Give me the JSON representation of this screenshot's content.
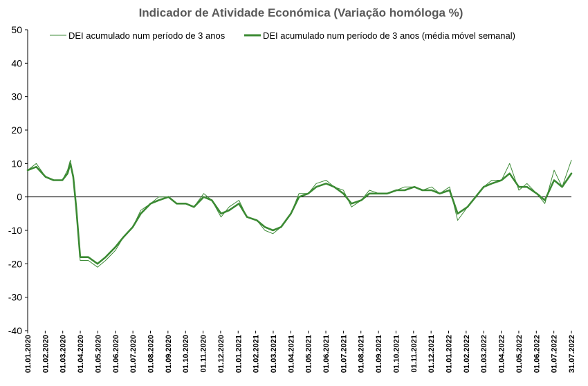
{
  "chart_data": {
    "type": "line",
    "title": "Indicador de Atividade Económica (Variação homóloga %)",
    "xlabel": "",
    "ylabel": "",
    "ylim": [
      -40,
      50
    ],
    "y_ticks": [
      -40,
      -30,
      -20,
      -10,
      0,
      10,
      20,
      30,
      40,
      50
    ],
    "x_tick_labels": [
      "01.01.2020",
      "01.02.2020",
      "01.03.2020",
      "01.04.2020",
      "01.05.2020",
      "01.06.2020",
      "01.07.2020",
      "01.08.2020",
      "01.09.2020",
      "01.10.2020",
      "01.11.2020",
      "01.12.2020",
      "01.01.2021",
      "01.02.2021",
      "01.03.2021",
      "01.04.2021",
      "01.05.2021",
      "01.06.2021",
      "01.07.2021",
      "01.08.2021",
      "01.09.2021",
      "01.10.2021",
      "01.11.2021",
      "01.12.2021",
      "01.01.2022",
      "01.02.2022",
      "01.03.2022",
      "01.04.2022",
      "01.05.2022",
      "01.06.2022",
      "01.07.2022",
      "31.07.2022"
    ],
    "x_range": [
      "2020-01-01",
      "2022-07-31"
    ],
    "grid": false,
    "legend_position": "top",
    "colors": {
      "daily": "#3d8b37",
      "weekly": "#3b8a33",
      "axis": "#000000",
      "zero_line": "#000000"
    },
    "series": [
      {
        "name": "DEI acumulado num período de 3 anos",
        "style": "thin",
        "x": [
          "2020-01-01",
          "2020-01-16",
          "2020-02-01",
          "2020-02-15",
          "2020-03-01",
          "2020-03-10",
          "2020-03-15",
          "2020-03-20",
          "2020-03-25",
          "2020-04-01",
          "2020-04-15",
          "2020-05-01",
          "2020-05-15",
          "2020-06-01",
          "2020-06-15",
          "2020-07-01",
          "2020-07-15",
          "2020-08-01",
          "2020-08-15",
          "2020-09-01",
          "2020-09-15",
          "2020-10-01",
          "2020-10-15",
          "2020-11-01",
          "2020-11-15",
          "2020-12-01",
          "2020-12-15",
          "2021-01-01",
          "2021-01-15",
          "2021-02-01",
          "2021-02-15",
          "2021-03-01",
          "2021-03-15",
          "2021-04-01",
          "2021-04-15",
          "2021-05-01",
          "2021-05-15",
          "2021-06-01",
          "2021-06-15",
          "2021-07-01",
          "2021-07-15",
          "2021-08-01",
          "2021-08-15",
          "2021-09-01",
          "2021-09-15",
          "2021-10-01",
          "2021-10-15",
          "2021-11-01",
          "2021-11-15",
          "2021-12-01",
          "2021-12-15",
          "2022-01-01",
          "2022-01-15",
          "2022-02-01",
          "2022-02-15",
          "2022-03-01",
          "2022-03-15",
          "2022-04-01",
          "2022-04-15",
          "2022-05-01",
          "2022-05-15",
          "2022-06-01",
          "2022-06-15",
          "2022-07-01",
          "2022-07-15",
          "2022-07-31"
        ],
        "values": [
          8,
          10,
          6,
          5,
          5,
          8,
          11,
          6,
          -3,
          -19,
          -19,
          -21,
          -19,
          -16,
          -12,
          -9,
          -4,
          -2,
          0,
          0,
          -2,
          -2,
          -3,
          1,
          -1,
          -6,
          -3,
          -1,
          -6,
          -7,
          -10,
          -11,
          -9,
          -5,
          1,
          1,
          4,
          5,
          3,
          2,
          -3,
          -1,
          2,
          1,
          1,
          2,
          3,
          3,
          2,
          3,
          1,
          3,
          -7,
          -3,
          0,
          3,
          5,
          5,
          10,
          2,
          4,
          1,
          -2,
          8,
          3,
          11
        ]
      },
      {
        "name": "DEI acumulado num período de 3 anos (média móvel semanal)",
        "style": "thick",
        "x": [
          "2020-01-01",
          "2020-01-16",
          "2020-02-01",
          "2020-02-15",
          "2020-03-01",
          "2020-03-10",
          "2020-03-15",
          "2020-03-20",
          "2020-03-25",
          "2020-04-01",
          "2020-04-15",
          "2020-05-01",
          "2020-05-15",
          "2020-06-01",
          "2020-06-15",
          "2020-07-01",
          "2020-07-15",
          "2020-08-01",
          "2020-08-15",
          "2020-09-01",
          "2020-09-15",
          "2020-10-01",
          "2020-10-15",
          "2020-11-01",
          "2020-11-15",
          "2020-12-01",
          "2020-12-15",
          "2021-01-01",
          "2021-01-15",
          "2021-02-01",
          "2021-02-15",
          "2021-03-01",
          "2021-03-15",
          "2021-04-01",
          "2021-04-15",
          "2021-05-01",
          "2021-05-15",
          "2021-06-01",
          "2021-06-15",
          "2021-07-01",
          "2021-07-15",
          "2021-08-01",
          "2021-08-15",
          "2021-09-01",
          "2021-09-15",
          "2021-10-01",
          "2021-10-15",
          "2021-11-01",
          "2021-11-15",
          "2021-12-01",
          "2021-12-15",
          "2022-01-01",
          "2022-01-15",
          "2022-02-01",
          "2022-02-15",
          "2022-03-01",
          "2022-03-15",
          "2022-04-01",
          "2022-04-15",
          "2022-05-01",
          "2022-05-15",
          "2022-06-01",
          "2022-06-15",
          "2022-07-01",
          "2022-07-15",
          "2022-07-31"
        ],
        "values": [
          8,
          9,
          6,
          5,
          5,
          7,
          10,
          6,
          -3,
          -18,
          -18,
          -20,
          -18,
          -15,
          -12,
          -9,
          -5,
          -2,
          -1,
          0,
          -2,
          -2,
          -3,
          0,
          -1,
          -5,
          -4,
          -2,
          -6,
          -7,
          -9,
          -10,
          -9,
          -5,
          0,
          1,
          3,
          4,
          3,
          1,
          -2,
          -1,
          1,
          1,
          1,
          2,
          2,
          3,
          2,
          2,
          1,
          2,
          -5,
          -3,
          0,
          3,
          4,
          5,
          7,
          3,
          3,
          1,
          -1,
          5,
          3,
          7
        ]
      }
    ]
  }
}
